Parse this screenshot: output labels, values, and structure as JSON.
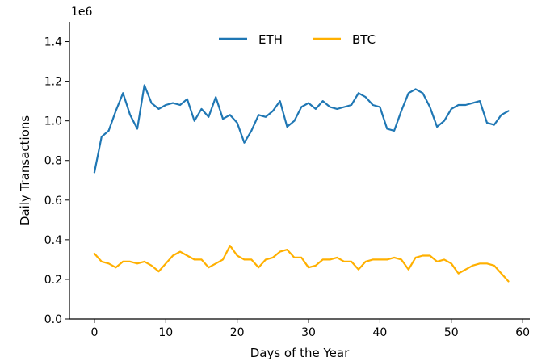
{
  "chart_data": {
    "type": "line",
    "title": "",
    "xlabel": "Days of the Year",
    "ylabel": "Daily Transactions",
    "y_offset_label": "1e6",
    "xlim": [
      -3.5,
      61
    ],
    "ylim": [
      0,
      1.5
    ],
    "x_ticks": [
      0,
      10,
      20,
      30,
      40,
      50,
      60
    ],
    "y_ticks": [
      0.0,
      0.2,
      0.4,
      0.6,
      0.8,
      1.0,
      1.2,
      1.4
    ],
    "x_tick_labels": [
      "0",
      "10",
      "20",
      "30",
      "40",
      "50",
      "60"
    ],
    "y_tick_labels": [
      "0.0",
      "0.2",
      "0.4",
      "0.6",
      "0.8",
      "1.0",
      "1.2",
      "1.4"
    ],
    "grid": false,
    "legend_position": "top-center",
    "x": [
      0,
      1,
      2,
      3,
      4,
      5,
      6,
      7,
      8,
      9,
      10,
      11,
      12,
      13,
      14,
      15,
      16,
      17,
      18,
      19,
      20,
      21,
      22,
      23,
      24,
      25,
      26,
      27,
      28,
      29,
      30,
      31,
      32,
      33,
      34,
      35,
      36,
      37,
      38,
      39,
      40,
      41,
      42,
      43,
      44,
      45,
      46,
      47,
      48,
      49,
      50,
      51,
      52,
      53,
      54,
      55,
      56,
      57,
      58
    ],
    "series": [
      {
        "name": "ETH",
        "color": "#1f77b4",
        "values": [
          0.74,
          0.92,
          0.95,
          1.05,
          1.14,
          1.03,
          0.96,
          1.18,
          1.09,
          1.06,
          1.08,
          1.09,
          1.08,
          1.11,
          1.0,
          1.06,
          1.02,
          1.12,
          1.01,
          1.03,
          0.99,
          0.89,
          0.95,
          1.03,
          1.02,
          1.05,
          1.1,
          0.97,
          1.0,
          1.07,
          1.09,
          1.06,
          1.1,
          1.07,
          1.06,
          1.07,
          1.08,
          1.14,
          1.12,
          1.08,
          1.07,
          0.96,
          0.95,
          1.05,
          1.14,
          1.16,
          1.14,
          1.07,
          0.97,
          1.0,
          1.06,
          1.08,
          1.08,
          1.09,
          1.1,
          0.99,
          0.98,
          1.03,
          1.05
        ]
      },
      {
        "name": "BTC",
        "color": "#ffb000",
        "values": [
          0.33,
          0.29,
          0.28,
          0.26,
          0.29,
          0.29,
          0.28,
          0.29,
          0.27,
          0.24,
          0.28,
          0.32,
          0.34,
          0.32,
          0.3,
          0.3,
          0.26,
          0.28,
          0.3,
          0.37,
          0.32,
          0.3,
          0.3,
          0.26,
          0.3,
          0.31,
          0.34,
          0.35,
          0.31,
          0.31,
          0.26,
          0.27,
          0.3,
          0.3,
          0.31,
          0.29,
          0.29,
          0.25,
          0.29,
          0.3,
          0.3,
          0.3,
          0.31,
          0.3,
          0.25,
          0.31,
          0.32,
          0.32,
          0.29,
          0.3,
          0.28,
          0.23,
          0.25,
          0.27,
          0.28,
          0.28,
          0.27,
          0.23,
          0.19
        ]
      }
    ]
  }
}
